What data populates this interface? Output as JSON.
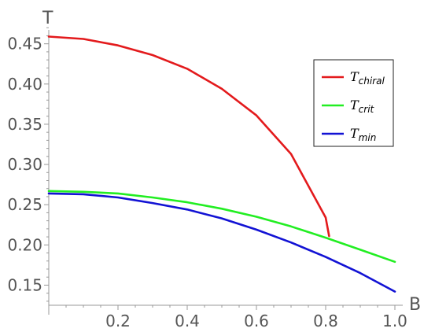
{
  "chart_data": {
    "type": "line",
    "xlabel": "B",
    "ylabel": "T",
    "xlim": [
      0,
      1.0
    ],
    "ylim": [
      0.125,
      0.48
    ],
    "x_origin_y": 0.125,
    "xticks": [
      {
        "value": 0.2,
        "label": "0.2"
      },
      {
        "value": 0.4,
        "label": "0.4"
      },
      {
        "value": 0.6,
        "label": "0.6"
      },
      {
        "value": 0.8,
        "label": "0.8"
      },
      {
        "value": 1.0,
        "label": "1.0"
      }
    ],
    "yticks": [
      {
        "value": 0.15,
        "label": "0.15"
      },
      {
        "value": 0.2,
        "label": "0.20"
      },
      {
        "value": 0.25,
        "label": "0.25"
      },
      {
        "value": 0.3,
        "label": "0.30"
      },
      {
        "value": 0.35,
        "label": "0.35"
      },
      {
        "value": 0.4,
        "label": "0.40"
      },
      {
        "value": 0.45,
        "label": "0.45"
      }
    ],
    "legend_position": "top-right",
    "series": [
      {
        "name": "T",
        "subscript": "chiral",
        "color": "#e31a1c",
        "x": [
          0,
          0.1,
          0.2,
          0.3,
          0.4,
          0.5,
          0.6,
          0.7,
          0.8,
          0.81
        ],
        "y": [
          0.459,
          0.456,
          0.448,
          0.436,
          0.419,
          0.394,
          0.361,
          0.313,
          0.234,
          0.211
        ]
      },
      {
        "name": "T",
        "subscript": "crit",
        "color": "#22ee22",
        "x": [
          0,
          0.1,
          0.2,
          0.3,
          0.4,
          0.5,
          0.6,
          0.7,
          0.8,
          0.9,
          1.0
        ],
        "y": [
          0.267,
          0.266,
          0.264,
          0.259,
          0.253,
          0.245,
          0.235,
          0.223,
          0.209,
          0.194,
          0.179
        ]
      },
      {
        "name": "T",
        "subscript": "min",
        "color": "#1212d4",
        "x": [
          0,
          0.1,
          0.2,
          0.3,
          0.4,
          0.5,
          0.6,
          0.7,
          0.8,
          0.9,
          1.0
        ],
        "y": [
          0.264,
          0.263,
          0.259,
          0.252,
          0.244,
          0.233,
          0.219,
          0.203,
          0.185,
          0.165,
          0.142
        ]
      }
    ]
  }
}
